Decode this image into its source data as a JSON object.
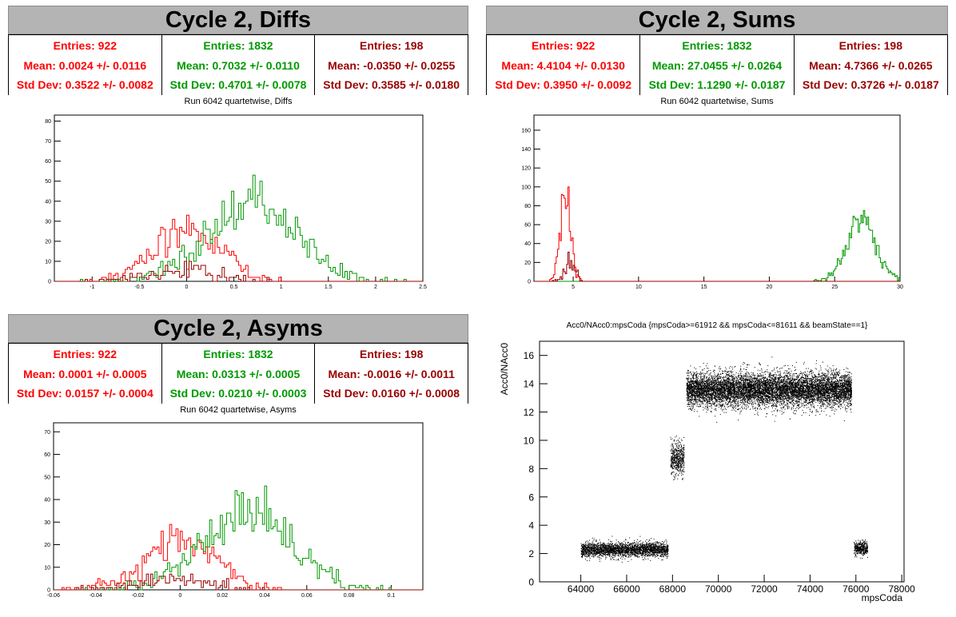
{
  "colors": {
    "red": "#ff0000",
    "green": "#009900",
    "darkred": "#990000",
    "black": "#000000"
  },
  "diffs": {
    "title": "Cycle 2, Diffs",
    "stats": [
      {
        "entries": "Entries: 922",
        "mean": "Mean: 0.0024 +/- 0.0116",
        "std": "Std Dev: 0.3522 +/- 0.0082",
        "color": "#ff0000"
      },
      {
        "entries": "Entries: 1832",
        "mean": "Mean: 0.7032 +/- 0.0110",
        "std": "Std Dev: 0.4701 +/- 0.0078",
        "color": "#009900"
      },
      {
        "entries": "Entries: 198",
        "mean": "Mean: -0.0350 +/- 0.0255",
        "std": "Std Dev: 0.3585 +/- 0.0180",
        "color": "#990000"
      }
    ],
    "run_title": "Run 6042 quartetwise, Diffs"
  },
  "sums": {
    "title": "Cycle 2, Sums",
    "stats": [
      {
        "entries": "Entries: 922",
        "mean": "Mean: 4.4104 +/- 0.0130",
        "std": "Std Dev: 0.3950 +/- 0.0092",
        "color": "#ff0000"
      },
      {
        "entries": "Entries: 1832",
        "mean": "Mean: 27.0455 +/- 0.0264",
        "std": "Std Dev: 1.1290 +/- 0.0187",
        "color": "#009900"
      },
      {
        "entries": "Entries: 198",
        "mean": "Mean: 4.7366 +/- 0.0265",
        "std": "Std Dev: 0.3726 +/- 0.0187",
        "color": "#990000"
      }
    ],
    "run_title": "Run 6042 quartetwise, Sums"
  },
  "asyms": {
    "title": "Cycle 2, Asyms",
    "stats": [
      {
        "entries": "Entries: 922",
        "mean": "Mean: 0.0001 +/- 0.0005",
        "std": "Std Dev: 0.0157 +/- 0.0004",
        "color": "#ff0000"
      },
      {
        "entries": "Entries: 1832",
        "mean": "Mean: 0.0313 +/- 0.0005",
        "std": "Std Dev: 0.0210 +/- 0.0003",
        "color": "#009900"
      },
      {
        "entries": "Entries: 198",
        "mean": "Mean: -0.0016 +/- 0.0011",
        "std": "Std Dev: 0.0160 +/- 0.0008",
        "color": "#990000"
      }
    ],
    "run_title": "Run 6042 quartetwise, Asyms"
  },
  "scatter": {
    "title": "Acc0/NAcc0:mpsCoda {mpsCoda>=61912 && mpsCoda<=81611 && beamState==1}"
  },
  "chart_data": [
    {
      "id": "diffs",
      "type": "histogram",
      "title": "Run 6042 quartetwise, Diffs",
      "xlim": [
        -1.4,
        2.5
      ],
      "ylim": [
        0,
        83
      ],
      "xticks": [
        -1,
        -0.5,
        0,
        0.5,
        1,
        1.5,
        2,
        2.5
      ],
      "yticks": [
        0,
        10,
        20,
        30,
        40,
        50,
        60,
        70,
        80
      ],
      "series": [
        {
          "entries": 922,
          "mean": 0.0024,
          "std": 0.3522,
          "color": "#ff0000"
        },
        {
          "entries": 1832,
          "mean": 0.7032,
          "std": 0.4701,
          "color": "#009900"
        },
        {
          "entries": 198,
          "mean": -0.035,
          "std": 0.3585,
          "color": "#990000"
        }
      ],
      "bin_width": 0.025
    },
    {
      "id": "sums",
      "type": "histogram",
      "title": "Run 6042 quartetwise, Sums",
      "xlim": [
        2,
        30
      ],
      "ylim": [
        0,
        176
      ],
      "xticks": [
        5,
        10,
        15,
        20,
        25,
        30
      ],
      "yticks": [
        0,
        20,
        40,
        60,
        80,
        100,
        120,
        140,
        160
      ],
      "series": [
        {
          "entries": 922,
          "mean": 4.4104,
          "std": 0.395,
          "color": "#ff0000"
        },
        {
          "entries": 1832,
          "mean": 27.0455,
          "std": 1.129,
          "color": "#009900"
        },
        {
          "entries": 198,
          "mean": 4.7366,
          "std": 0.3726,
          "color": "#990000"
        }
      ],
      "bin_width": 0.1
    },
    {
      "id": "asyms",
      "type": "histogram",
      "title": "Run 6042 quartetwise, Asyms",
      "xlim": [
        -0.06,
        0.115
      ],
      "ylim": [
        0,
        74
      ],
      "xticks": [
        -0.06,
        -0.04,
        -0.02,
        0,
        0.02,
        0.04,
        0.06,
        0.08,
        0.1
      ],
      "yticks": [
        0,
        10,
        20,
        30,
        40,
        50,
        60,
        70
      ],
      "series": [
        {
          "entries": 922,
          "mean": 0.0001,
          "std": 0.0157,
          "color": "#ff0000"
        },
        {
          "entries": 1832,
          "mean": 0.0313,
          "std": 0.021,
          "color": "#009900"
        },
        {
          "entries": 198,
          "mean": -0.0016,
          "std": 0.016,
          "color": "#990000"
        }
      ],
      "bin_width": 0.001
    },
    {
      "id": "scatter",
      "type": "scatter",
      "title": "Acc0/NAcc0:mpsCoda {mpsCoda>=61912 && mpsCoda<=81611 && beamState==1}",
      "xlabel": "mpsCoda",
      "ylabel": "Acc0/NAcc0",
      "xlim": [
        62200,
        78100
      ],
      "ylim": [
        0,
        17
      ],
      "xticks": [
        64000,
        66000,
        68000,
        70000,
        72000,
        74000,
        76000,
        78000
      ],
      "yticks": [
        0,
        2,
        4,
        6,
        8,
        10,
        12,
        14,
        16
      ],
      "clusters": [
        {
          "x_range": [
            64000,
            67800
          ],
          "y_center": 2.3,
          "y_sigma": 0.25,
          "count": 2600
        },
        {
          "x_range": [
            67900,
            68500
          ],
          "y_center": 8.7,
          "y_sigma": 0.55,
          "count": 500
        },
        {
          "x_range": [
            68600,
            75800
          ],
          "y_center": 13.6,
          "y_sigma": 0.6,
          "count": 9000
        },
        {
          "x_range": [
            75900,
            76500
          ],
          "y_center": 2.4,
          "y_sigma": 0.25,
          "count": 380
        }
      ]
    }
  ]
}
